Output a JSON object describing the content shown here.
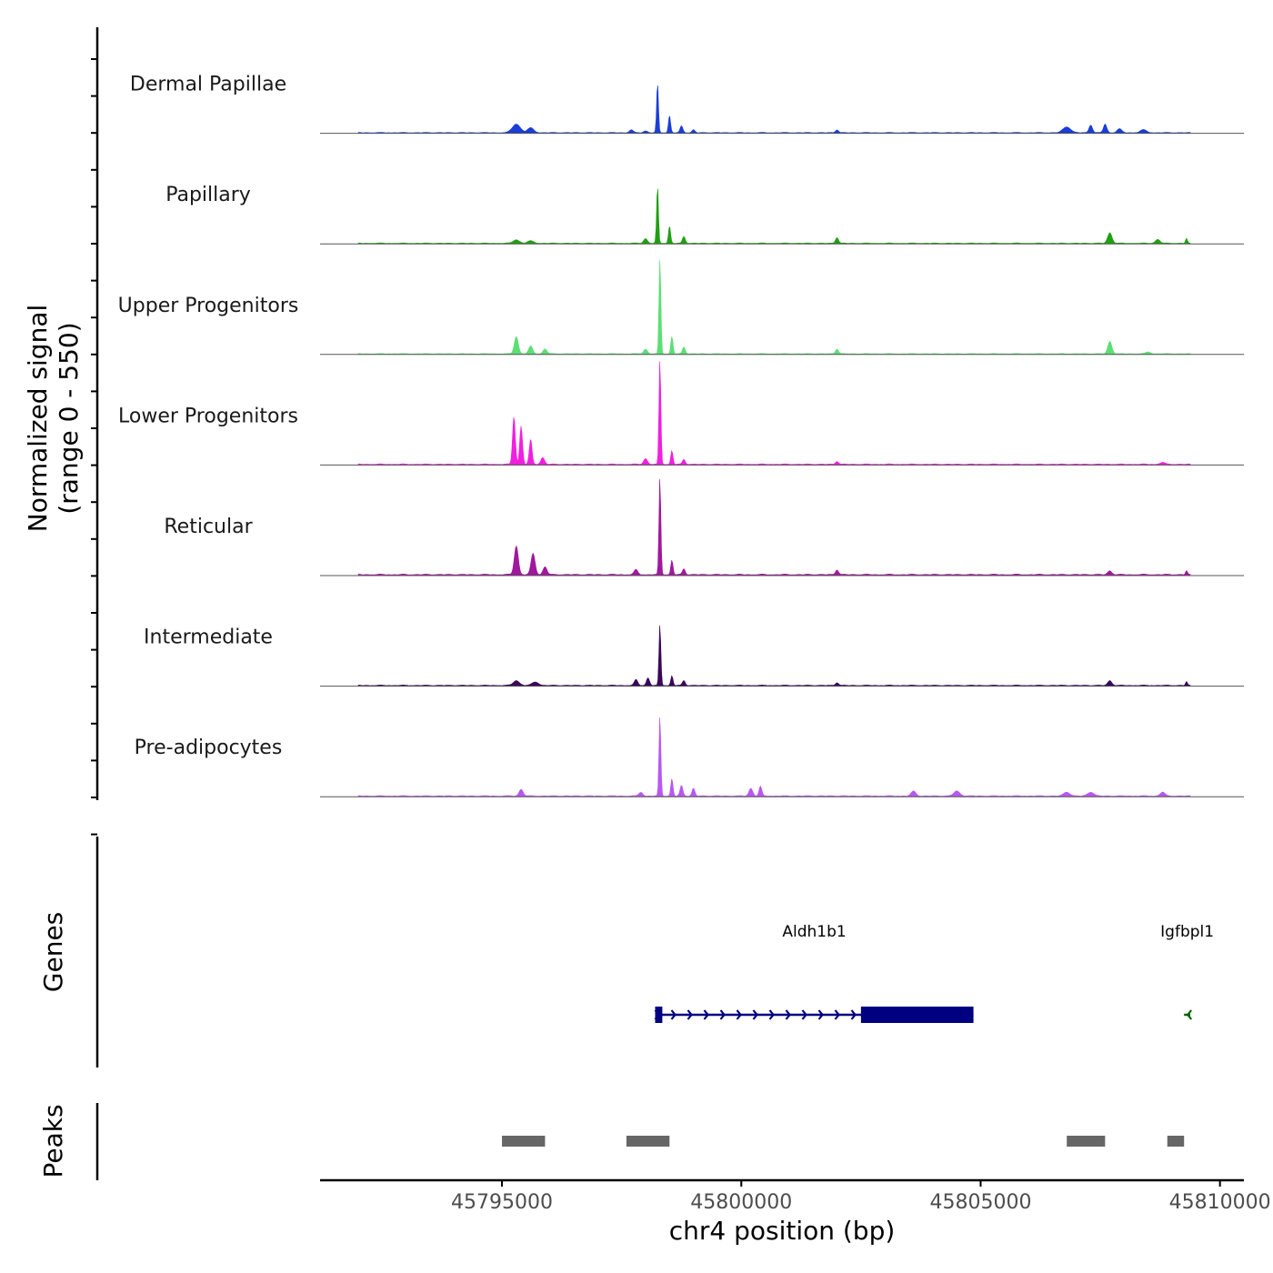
{
  "chart_data": {
    "type": "area",
    "title": "",
    "region": {
      "chrom": "chr4",
      "start": 45791200,
      "end": 45810500
    },
    "ylabel": "Normalized signal",
    "ylabel_range": "(range 0 - 550)",
    "ylim": [
      0,
      550
    ],
    "xlabel": "chr4 position (bp)",
    "x_ticks": [
      45795000,
      45800000,
      45805000,
      45810000
    ],
    "x_tick_labels": [
      "45795000",
      "45800000",
      "45805000",
      "45810000"
    ],
    "coverage_tracks": [
      {
        "name": "Dermal Papillae",
        "color": "#1a3ed6",
        "peaks": [
          [
            45795300,
            45,
            260
          ],
          [
            45795600,
            25,
            200
          ],
          [
            45797700,
            15,
            120
          ],
          [
            45798000,
            10,
            120
          ],
          [
            45798250,
            260,
            60
          ],
          [
            45798500,
            90,
            70
          ],
          [
            45798750,
            35,
            90
          ],
          [
            45799000,
            15,
            90
          ],
          [
            45802000,
            15,
            100
          ],
          [
            45806800,
            30,
            250
          ],
          [
            45807300,
            40,
            110
          ],
          [
            45807600,
            45,
            110
          ],
          [
            45807900,
            20,
            150
          ],
          [
            45808400,
            15,
            200
          ]
        ],
        "baseline": 5
      },
      {
        "name": "Papillary",
        "color": "#1ea010",
        "peaks": [
          [
            45795300,
            18,
            200
          ],
          [
            45795600,
            12,
            200
          ],
          [
            45798000,
            25,
            120
          ],
          [
            45798250,
            300,
            60
          ],
          [
            45798500,
            90,
            70
          ],
          [
            45798800,
            35,
            90
          ],
          [
            45802000,
            30,
            100
          ],
          [
            45807700,
            55,
            140
          ],
          [
            45808700,
            20,
            150
          ],
          [
            45809300,
            25,
            60
          ]
        ],
        "baseline": 5
      },
      {
        "name": "Upper Progenitors",
        "color": "#5cde74",
        "peaks": [
          [
            45795300,
            90,
            130
          ],
          [
            45795600,
            40,
            130
          ],
          [
            45795900,
            25,
            130
          ],
          [
            45798000,
            25,
            120
          ],
          [
            45798300,
            500,
            60
          ],
          [
            45798550,
            90,
            70
          ],
          [
            45798800,
            35,
            90
          ],
          [
            45802000,
            25,
            100
          ],
          [
            45807700,
            65,
            130
          ],
          [
            45808500,
            10,
            150
          ]
        ],
        "baseline": 5
      },
      {
        "name": "Lower Progenitors",
        "color": "#f020e0",
        "peaks": [
          [
            45795250,
            250,
            90
          ],
          [
            45795400,
            200,
            90
          ],
          [
            45795600,
            130,
            90
          ],
          [
            45795850,
            35,
            120
          ],
          [
            45798000,
            30,
            120
          ],
          [
            45798300,
            550,
            60
          ],
          [
            45798550,
            70,
            70
          ],
          [
            45798800,
            25,
            90
          ],
          [
            45802000,
            15,
            100
          ],
          [
            45808800,
            10,
            150
          ]
        ],
        "baseline": 6
      },
      {
        "name": "Reticular",
        "color": "#a0189c",
        "peaks": [
          [
            45795300,
            150,
            130
          ],
          [
            45795650,
            110,
            130
          ],
          [
            45795900,
            40,
            130
          ],
          [
            45797800,
            25,
            120
          ],
          [
            45798300,
            510,
            60
          ],
          [
            45798550,
            75,
            70
          ],
          [
            45798800,
            30,
            90
          ],
          [
            45802000,
            25,
            100
          ],
          [
            45807700,
            20,
            130
          ],
          [
            45809300,
            20,
            60
          ]
        ],
        "baseline": 8
      },
      {
        "name": "Intermediate",
        "color": "#3a075a",
        "peaks": [
          [
            45795300,
            25,
            200
          ],
          [
            45795700,
            18,
            200
          ],
          [
            45797800,
            30,
            110
          ],
          [
            45798050,
            40,
            100
          ],
          [
            45798300,
            320,
            60
          ],
          [
            45798550,
            50,
            70
          ],
          [
            45798800,
            25,
            90
          ],
          [
            45802000,
            15,
            100
          ],
          [
            45807700,
            25,
            130
          ],
          [
            45809300,
            20,
            60
          ]
        ],
        "baseline": 6
      },
      {
        "name": "Pre-adipocytes",
        "color": "#b858f0",
        "peaks": [
          [
            45795400,
            35,
            130
          ],
          [
            45797900,
            20,
            120
          ],
          [
            45798300,
            420,
            60
          ],
          [
            45798550,
            90,
            70
          ],
          [
            45798750,
            55,
            90
          ],
          [
            45799000,
            40,
            90
          ],
          [
            45800200,
            40,
            120
          ],
          [
            45800400,
            50,
            90
          ],
          [
            45803600,
            25,
            150
          ],
          [
            45804500,
            25,
            200
          ],
          [
            45806800,
            20,
            200
          ],
          [
            45807300,
            20,
            200
          ],
          [
            45808800,
            20,
            150
          ]
        ],
        "baseline": 6
      }
    ]
  },
  "genes_panel": {
    "label": "Genes",
    "genes": [
      {
        "name": "Aldh1b1",
        "strand": "+",
        "color": "#000080",
        "start": 45798200,
        "end": 45804850,
        "exons": [
          [
            45798200,
            45798350
          ],
          [
            45802500,
            45804850
          ]
        ]
      },
      {
        "name": "Igfbpl1",
        "strand": "-",
        "color": "#006400",
        "start": 45809250,
        "end": 45809380,
        "exons": []
      }
    ]
  },
  "peaks_panel": {
    "label": "Peaks",
    "color": "#666666",
    "peaks": [
      [
        45795000,
        45795900
      ],
      [
        45797600,
        45798500
      ],
      [
        45806800,
        45807600
      ],
      [
        45808900,
        45809250
      ]
    ]
  }
}
